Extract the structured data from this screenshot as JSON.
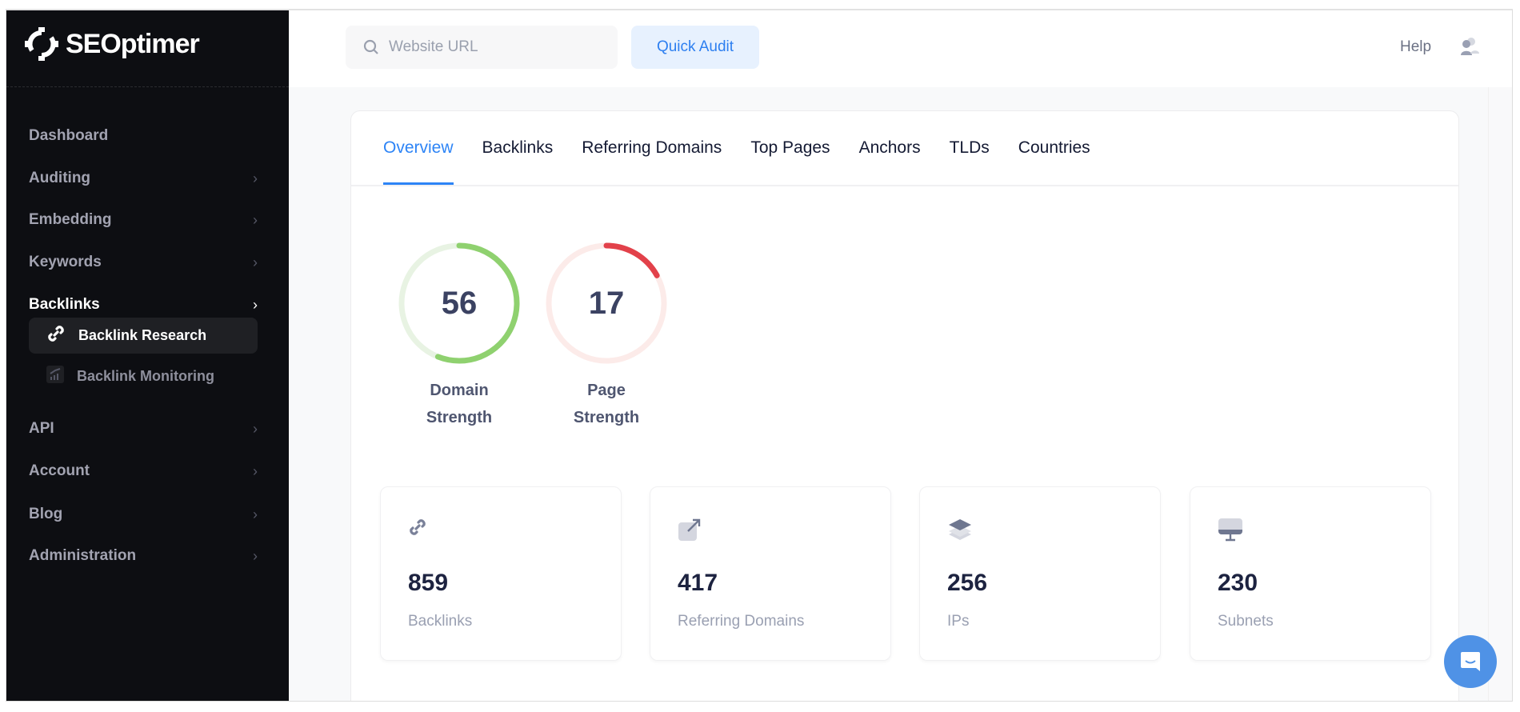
{
  "brand": {
    "name": "SEOptimer"
  },
  "sidebar": {
    "items": [
      {
        "label": "Dashboard",
        "chevron": false
      },
      {
        "label": "Auditing",
        "chevron": true
      },
      {
        "label": "Embedding",
        "chevron": true
      },
      {
        "label": "Keywords",
        "chevron": true
      },
      {
        "label": "Backlinks",
        "chevron": true,
        "active": true
      },
      {
        "label": "API",
        "chevron": true
      },
      {
        "label": "Account",
        "chevron": true
      },
      {
        "label": "Blog",
        "chevron": true
      },
      {
        "label": "Administration",
        "chevron": true
      }
    ],
    "subitems": [
      {
        "label": "Backlink Research",
        "icon": "link-icon",
        "active": true
      },
      {
        "label": "Backlink Monitoring",
        "icon": "chart-icon",
        "active": false
      }
    ]
  },
  "header": {
    "search_placeholder": "Website URL",
    "quick_audit": "Quick Audit",
    "help": "Help"
  },
  "tabs": [
    {
      "label": "Overview",
      "active": true
    },
    {
      "label": "Backlinks"
    },
    {
      "label": "Referring Domains"
    },
    {
      "label": "Top Pages"
    },
    {
      "label": "Anchors"
    },
    {
      "label": "TLDs"
    },
    {
      "label": "Countries"
    }
  ],
  "gauges": [
    {
      "value": "56",
      "percent": 56,
      "label_line1": "Domain",
      "label_line2": "Strength",
      "color": "#8fd16f",
      "track": "#e8f3e3"
    },
    {
      "value": "17",
      "percent": 17,
      "label_line1": "Page",
      "label_line2": "Strength",
      "color": "#e2414a",
      "track": "#fcebe9"
    }
  ],
  "stats": [
    {
      "value": "859",
      "label": "Backlinks",
      "icon": "link-icon"
    },
    {
      "value": "417",
      "label": "Referring Domains",
      "icon": "external-link-icon"
    },
    {
      "value": "256",
      "label": "IPs",
      "icon": "layers-icon"
    },
    {
      "value": "230",
      "label": "Subnets",
      "icon": "monitor-icon"
    }
  ],
  "colors": {
    "accent": "#2d84f6",
    "sidebar_bg": "#0d0e12"
  }
}
